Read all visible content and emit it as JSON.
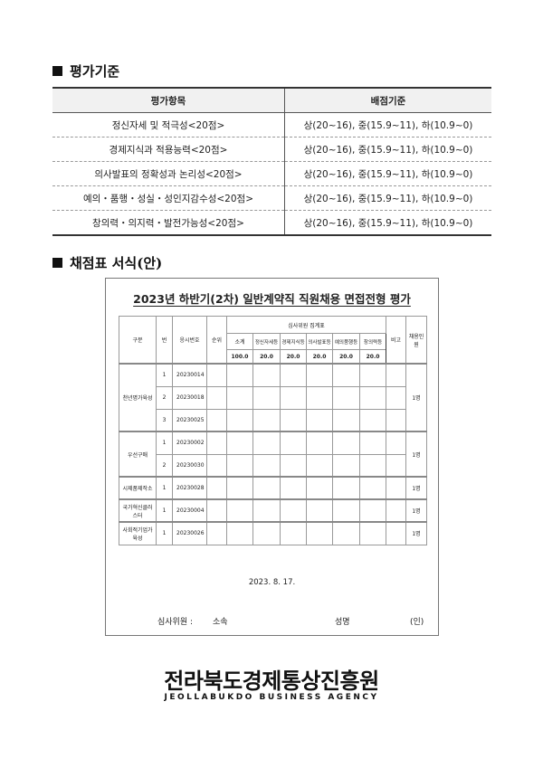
{
  "section1": {
    "title": "평가기준"
  },
  "criteria": {
    "headers": [
      "평가항목",
      "배점기준"
    ],
    "rows": [
      [
        "정신자세 및 적극성<20점>",
        "상(20~16), 중(15.9~11), 하(10.9~0)"
      ],
      [
        "경제지식과 적용능력<20점>",
        "상(20~16), 중(15.9~11), 하(10.9~0)"
      ],
      [
        "의사발표의 정확성과 논리성<20점>",
        "상(20~16), 중(15.9~11), 하(10.9~0)"
      ],
      [
        "예의・품행・성실・성인지감수성<20점>",
        "상(20~16), 중(15.9~11), 하(10.9~0)"
      ],
      [
        "창의력・의지력・발전가능성<20점>",
        "상(20~16), 중(15.9~11), 하(10.9~0)"
      ]
    ]
  },
  "section2": {
    "title": "채점표 서식(안)"
  },
  "form": {
    "title": "2023년 하반기(2차) 일반계약직 직원채용 면접전형 평가",
    "headers": {
      "category": "구분",
      "no": "번",
      "exam_no": "응시번호",
      "rank": "순위",
      "summary": "심사위원 집계표",
      "subtotal": "소계",
      "items": [
        "정신자세등",
        "경제지식등",
        "의사발표등",
        "예의품행등",
        "창의력등"
      ],
      "note": "비고",
      "hires": "채용인원"
    },
    "scores": {
      "subtotal": "100.0",
      "items": [
        "20.0",
        "20.0",
        "20.0",
        "20.0",
        "20.0"
      ]
    },
    "groups": [
      {
        "name": "천년명가육성",
        "hires": "1명",
        "rows": [
          [
            "1",
            "20230014"
          ],
          [
            "2",
            "20230018"
          ],
          [
            "3",
            "20230025"
          ]
        ]
      },
      {
        "name": "우선구매",
        "hires": "1명",
        "rows": [
          [
            "1",
            "20230002"
          ],
          [
            "2",
            "20230030"
          ]
        ]
      },
      {
        "name": "시제품제작소",
        "hires": "1명",
        "rows": [
          [
            "1",
            "20230028"
          ]
        ]
      },
      {
        "name": "국가혁신클러스터",
        "hires": "1명",
        "rows": [
          [
            "1",
            "20230004"
          ]
        ]
      },
      {
        "name": "사회적기업가육성",
        "hires": "1명",
        "rows": [
          [
            "1",
            "20230026"
          ]
        ]
      }
    ],
    "date": "2023. 8. 17.",
    "judge_label": "심사위원 :",
    "affiliation_label": "소속",
    "name_label": "성명",
    "seal_label": "(인)"
  },
  "logo": {
    "name": "전라북도경제통상진흥원",
    "english": "JEOLLABUKDO BUSINESS AGENCY"
  }
}
